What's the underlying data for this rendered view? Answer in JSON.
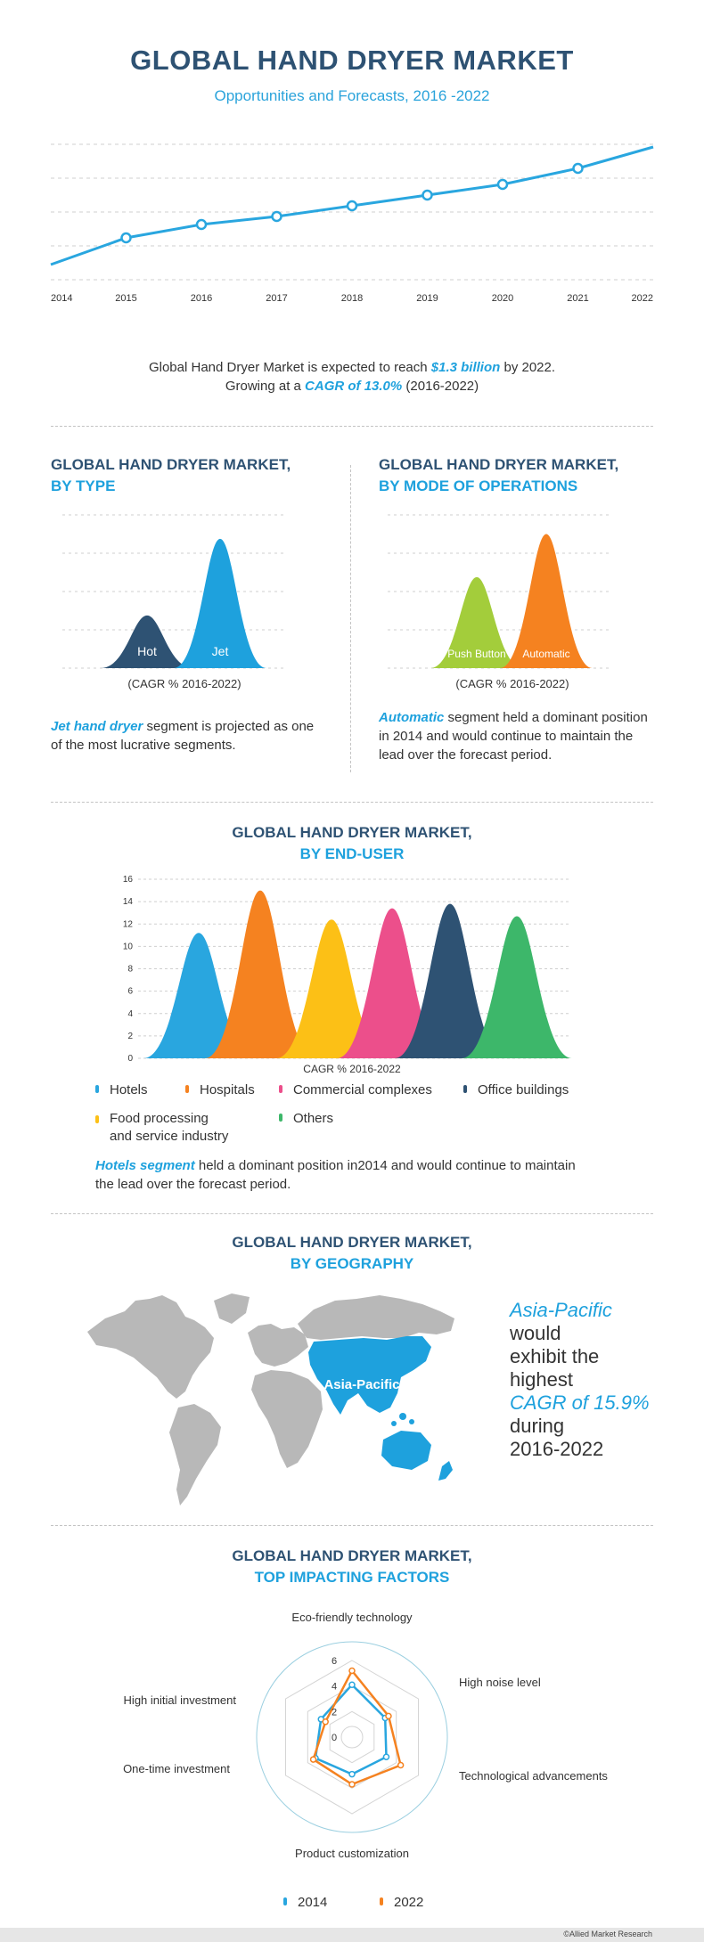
{
  "header": {
    "title": "GLOBAL HAND DRYER MARKET",
    "subtitle": "Opportunities and Forecasts, 2016 -2022"
  },
  "summary": {
    "line1_pre": "Global  Hand Dryer Market is expected to reach ",
    "line1_em": "$1.3 billion",
    "line1_post": " by 2022.",
    "line2_pre": "Growing at a ",
    "line2_em": "CAGR of 13.0%",
    "line2_post": " (2016-2022)"
  },
  "by_type": {
    "title1": "GLOBAL HAND DRYER MARKET,",
    "title2": "BY TYPE",
    "caption": "(CAGR % 2016-2022)",
    "text_em": "Jet hand dryer",
    "text_rest": " segment is projected as one of the most lucrative segments."
  },
  "by_mode": {
    "title1": "GLOBAL HAND DRYER MARKET,",
    "title2": "BY MODE OF OPERATIONS",
    "caption": "(CAGR % 2016-2022)",
    "text_em": "Automatic",
    "text_rest": " segment held a dominant position in 2014 and would continue to maintain the lead over the forecast period."
  },
  "by_end_user": {
    "title1": "GLOBAL HAND DRYER MARKET,",
    "title2": "BY END-USER",
    "caption": "CAGR % 2016-2022",
    "legend": [
      {
        "label": "Hotels",
        "color": "#29a6df"
      },
      {
        "label": "Hospitals",
        "color": "#f58220"
      },
      {
        "label": "Commercial complexes",
        "color": "#ec4f8b"
      },
      {
        "label": "Office buildings",
        "color": "#2e5273"
      },
      {
        "label": "Food processing\nand service industry",
        "color": "#fcc016"
      },
      {
        "label": "Others",
        "color": "#3db76a"
      }
    ],
    "text_em": "Hotels segment",
    "text_rest": " held a dominant position in2014 and would continue to maintain the lead over the forecast period."
  },
  "by_geography": {
    "title1": "GLOBAL HAND DRYER MARKET,",
    "title2": "BY GEOGRAPHY",
    "map_label": "Asia-Pacific",
    "line1": "Asia-Pacific",
    "line2": "would",
    "line3": "exhibit the",
    "line4": "highest",
    "line5": "CAGR of 15.9%",
    "line6": "during",
    "line7": "2016-2022"
  },
  "factors": {
    "title1": "GLOBAL HAND DRYER MARKET,",
    "title2": "TOP IMPACTING FACTORS"
  },
  "footer": {
    "credit": "©Allied Market Research"
  },
  "colors": {
    "navy": "#2e5273",
    "blue": "#1ea1dd",
    "orange": "#f58220",
    "grey_map": "#b8b8b8"
  },
  "chart_data": [
    {
      "type": "line",
      "x": [
        "2014",
        "2015",
        "2016",
        "2017",
        "2018",
        "2019",
        "2020",
        "2021",
        "2022"
      ],
      "series": [
        {
          "values": [
            1.0,
            2.0,
            2.5,
            2.8,
            3.2,
            3.6,
            4.0,
            4.6,
            5.4
          ]
        }
      ],
      "ylim": [
        0.5,
        5.5
      ],
      "grid": true
    },
    {
      "type": "area",
      "categories": [
        "Hot",
        "Jet"
      ],
      "values": [
        5.5,
        13.5
      ],
      "colors": [
        "#2e5273",
        "#1ea1dd"
      ],
      "ylim": [
        0,
        16
      ],
      "grid": true
    },
    {
      "type": "area",
      "categories": [
        "Push Button",
        "Automatic"
      ],
      "values": [
        9.5,
        14.0
      ],
      "colors": [
        "#a3cd3b",
        "#f58220"
      ],
      "ylim": [
        0,
        16
      ],
      "grid": true
    },
    {
      "type": "area",
      "categories": [
        "Hotels",
        "Hospitals",
        "Food processing and service industry",
        "Commercial complexes",
        "Office buildings",
        "Others"
      ],
      "values": [
        11.2,
        15.0,
        12.4,
        13.4,
        13.8,
        12.7
      ],
      "colors": [
        "#29a6df",
        "#f58220",
        "#fcc016",
        "#ec4f8b",
        "#2e5273",
        "#3db76a"
      ],
      "yticks": [
        0,
        2,
        4,
        6,
        8,
        10,
        12,
        14,
        16
      ],
      "ylim": [
        0,
        16
      ],
      "grid": true
    },
    {
      "type": "radar",
      "axes": [
        "Eco-friendly technology",
        "High noise level",
        "Technological advancements",
        "Product customization",
        "One-time investment",
        "High initial investment"
      ],
      "rticks": [
        0,
        2,
        4,
        6
      ],
      "rlim": [
        0,
        6
      ],
      "series": [
        {
          "name": "2014",
          "color": "#29a6df",
          "values": [
            4.1,
            3.0,
            3.1,
            2.9,
            3.3,
            2.8
          ]
        },
        {
          "name": "2022",
          "color": "#f58220",
          "values": [
            5.2,
            3.3,
            4.4,
            3.7,
            3.5,
            2.4
          ]
        }
      ]
    }
  ]
}
